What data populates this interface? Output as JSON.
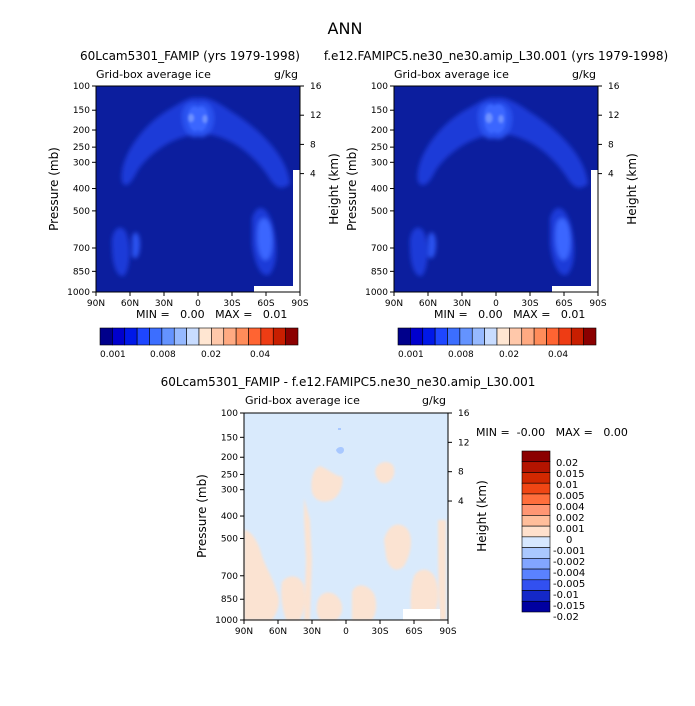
{
  "page_title": "ANN",
  "panels": [
    {
      "title": "60Lcam5301_FAMIP (yrs 1979-1998)",
      "subtitle_left": "Grid-box average ice",
      "subtitle_right": "g/kg",
      "ylabel": "Pressure (mb)",
      "ylabel2": "Height (km)",
      "stats": "MIN =   0.00   MAX =   0.01",
      "colorbar_labels": [
        "0.001",
        "0.008",
        "0.02",
        "0.04"
      ]
    },
    {
      "title": "f.e12.FAMIPC5.ne30_ne30.amip_L30.001 (yrs 1979-1998)",
      "subtitle_left": "Grid-box average ice",
      "subtitle_right": "g/kg",
      "ylabel": "Pressure (mb)",
      "ylabel2": "Height (km)",
      "stats": "MIN =   0.00   MAX =   0.01",
      "colorbar_labels": [
        "0.001",
        "0.008",
        "0.02",
        "0.04"
      ]
    },
    {
      "title": "60Lcam5301_FAMIP - f.e12.FAMIPC5.ne30_ne30.amip_L30.001",
      "subtitle_left": "Grid-box average ice",
      "subtitle_right": "g/kg",
      "ylabel": "Pressure (mb)",
      "ylabel2": "Height (km)",
      "stats": "MIN =  -0.00   MAX =   0.00",
      "colorbar_labels": [
        "0.02",
        "0.015",
        "0.01",
        "0.005",
        "0.004",
        "0.002",
        "0.001",
        "0",
        "-0.001",
        "-0.002",
        "-0.004",
        "-0.005",
        "-0.01",
        "-0.015",
        "-0.02"
      ]
    }
  ],
  "chart_data": [
    {
      "type": "heatmap",
      "title": "60Lcam5301_FAMIP (yrs 1979-1998)",
      "variable": "Grid-box average ice",
      "units": "g/kg",
      "x_ticks": [
        "90N",
        "60N",
        "30N",
        "0",
        "30S",
        "60S",
        "90S"
      ],
      "x_values": [
        90,
        60,
        30,
        0,
        -30,
        -60,
        -90
      ],
      "y_ticks": [
        "100",
        "150",
        "200",
        "250",
        "300",
        "400",
        "500",
        "700",
        "850",
        "1000"
      ],
      "y_values": [
        100,
        150,
        200,
        250,
        300,
        400,
        500,
        700,
        850,
        1000
      ],
      "y2_ticks": [
        "16",
        "12",
        "8",
        "4"
      ],
      "y2_values": [
        16,
        12,
        8,
        4
      ],
      "ylim": [
        1000,
        100
      ],
      "min": 0.0,
      "max": 0.01
    },
    {
      "type": "heatmap",
      "title": "f.e12.FAMIPC5.ne30_ne30.amip_L30.001 (yrs 1979-1998)",
      "variable": "Grid-box average ice",
      "units": "g/kg",
      "x_ticks": [
        "90N",
        "60N",
        "30N",
        "0",
        "30S",
        "60S",
        "90S"
      ],
      "x_values": [
        90,
        60,
        30,
        0,
        -30,
        -60,
        -90
      ],
      "y_ticks": [
        "100",
        "150",
        "200",
        "250",
        "300",
        "400",
        "500",
        "700",
        "850",
        "1000"
      ],
      "y_values": [
        100,
        150,
        200,
        250,
        300,
        400,
        500,
        700,
        850,
        1000
      ],
      "y2_ticks": [
        "16",
        "12",
        "8",
        "4"
      ],
      "y2_values": [
        16,
        12,
        8,
        4
      ],
      "ylim": [
        1000,
        100
      ],
      "min": 0.0,
      "max": 0.01
    },
    {
      "type": "heatmap",
      "title": "60Lcam5301_FAMIP - f.e12.FAMIPC5.ne30_ne30.amip_L30.001",
      "variable": "Grid-box average ice",
      "units": "g/kg",
      "x_ticks": [
        "90N",
        "60N",
        "30N",
        "0",
        "30S",
        "60S",
        "90S"
      ],
      "x_values": [
        90,
        60,
        30,
        0,
        -30,
        -60,
        -90
      ],
      "y_ticks": [
        "100",
        "150",
        "200",
        "250",
        "300",
        "400",
        "500",
        "700",
        "850",
        "1000"
      ],
      "y_values": [
        100,
        150,
        200,
        250,
        300,
        400,
        500,
        700,
        850,
        1000
      ],
      "y2_ticks": [
        "16",
        "12",
        "8",
        "4"
      ],
      "y2_values": [
        16,
        12,
        8,
        4
      ],
      "ylim": [
        1000,
        100
      ],
      "min": -0.0,
      "max": 0.0
    }
  ],
  "colors": {
    "field_palette": [
      "#00008b",
      "#0000cd",
      "#0018e8",
      "#1e46ff",
      "#3c6eff",
      "#6493ff",
      "#96b9ff",
      "#c8dcff",
      "#ffe6d2",
      "#ffc8aa",
      "#ffaa82",
      "#ff8c5a",
      "#ff6432",
      "#ee3c14",
      "#c81e00",
      "#8b0000"
    ],
    "diff_palette": [
      "#8b0000",
      "#b41400",
      "#d22800",
      "#f04614",
      "#ff6e3c",
      "#ff9673",
      "#ffbe9b",
      "#ffe1cd",
      "#d7e8ff",
      "#aac8ff",
      "#82a5ff",
      "#5a82ff",
      "#3250f0",
      "#1428c8",
      "#0000a0"
    ],
    "background_field": "#0c1e9e",
    "diff_bg": "#d9eafc",
    "diff_pos": "#fbe3d2"
  }
}
